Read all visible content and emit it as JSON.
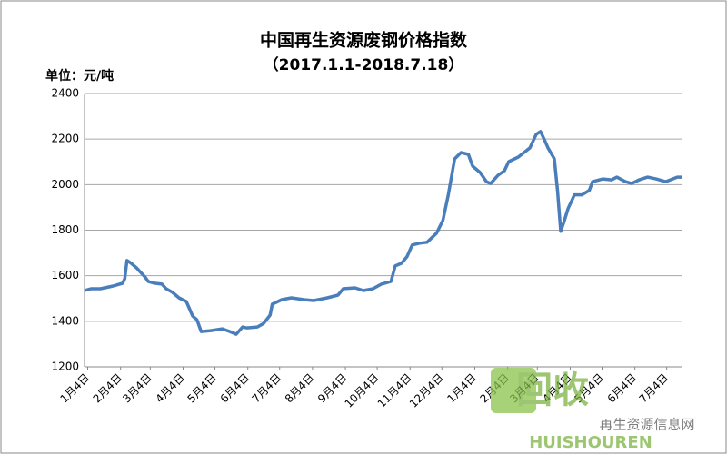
{
  "chart_data": {
    "type": "line",
    "title": "中国再生资源废钢价格指数",
    "subtitle": "（2017.1.1-2018.7.18）",
    "y_label": "单位：元/吨",
    "xlim": [
      0,
      563
    ],
    "xticks": [
      {
        "value": 3,
        "label": "1月4日"
      },
      {
        "value": 34,
        "label": "2月4日"
      },
      {
        "value": 62,
        "label": "3月4日"
      },
      {
        "value": 93,
        "label": "4月4日"
      },
      {
        "value": 123,
        "label": "5月4日"
      },
      {
        "value": 154,
        "label": "6月4日"
      },
      {
        "value": 184,
        "label": "7月4日"
      },
      {
        "value": 215,
        "label": "8月4日"
      },
      {
        "value": 246,
        "label": "9月4日"
      },
      {
        "value": 276,
        "label": "10月4日"
      },
      {
        "value": 307,
        "label": "11月4日"
      },
      {
        "value": 337,
        "label": "12月4日"
      },
      {
        "value": 368,
        "label": "1月4日"
      },
      {
        "value": 399,
        "label": "2月4日"
      },
      {
        "value": 427,
        "label": "3月4日"
      },
      {
        "value": 458,
        "label": "4月4日"
      },
      {
        "value": 488,
        "label": "5月4日"
      },
      {
        "value": 519,
        "label": "6月4日"
      },
      {
        "value": 549,
        "label": "7月4日"
      }
    ],
    "ylim": [
      1200,
      2400
    ],
    "yticks": [
      1200,
      1400,
      1600,
      1800,
      2000,
      2200,
      2400
    ],
    "grid": true,
    "series": [
      {
        "color": "#4a7ebb",
        "x": [
          0,
          6,
          15,
          27,
          36,
          38,
          40,
          44,
          49,
          53,
          57,
          60,
          66,
          73,
          77,
          83,
          89,
          96,
          99,
          102,
          106,
          110,
          119,
          130,
          137,
          143,
          149,
          153,
          163,
          169,
          175,
          177,
          186,
          195,
          207,
          216,
          229,
          239,
          244,
          255,
          263,
          272,
          280,
          289,
          293,
          299,
          304,
          309,
          316,
          323,
          332,
          338,
          343,
          349,
          355,
          362,
          366,
          373,
          379,
          383,
          390,
          396,
          400,
          409,
          420,
          426,
          430,
          434,
          437,
          443,
          446,
          449,
          452,
          456,
          462,
          469,
          476,
          479,
          489,
          497,
          502,
          510,
          516,
          523,
          531,
          539,
          548,
          559,
          563
        ],
        "values": [
          1535,
          1543,
          1543,
          1555,
          1567,
          1587,
          1667,
          1655,
          1635,
          1615,
          1595,
          1575,
          1567,
          1563,
          1543,
          1527,
          1503,
          1487,
          1455,
          1423,
          1407,
          1355,
          1359,
          1367,
          1355,
          1343,
          1375,
          1371,
          1375,
          1391,
          1427,
          1475,
          1495,
          1503,
          1495,
          1491,
          1503,
          1515,
          1543,
          1547,
          1535,
          1543,
          1563,
          1575,
          1643,
          1655,
          1683,
          1735,
          1743,
          1747,
          1787,
          1843,
          1955,
          2113,
          2141,
          2133,
          2081,
          2053,
          2013,
          2005,
          2041,
          2061,
          2101,
          2121,
          2161,
          2221,
          2233,
          2193,
          2161,
          2113,
          1973,
          1795,
          1835,
          1895,
          1955,
          1955,
          1975,
          2013,
          2025,
          2021,
          2033,
          2013,
          2005,
          2021,
          2033,
          2025,
          2013,
          2033,
          2033
        ]
      }
    ]
  },
  "watermark": {
    "logo": "回收",
    "name": "再生资源信息网",
    "brand": "HUISHOUREN"
  }
}
